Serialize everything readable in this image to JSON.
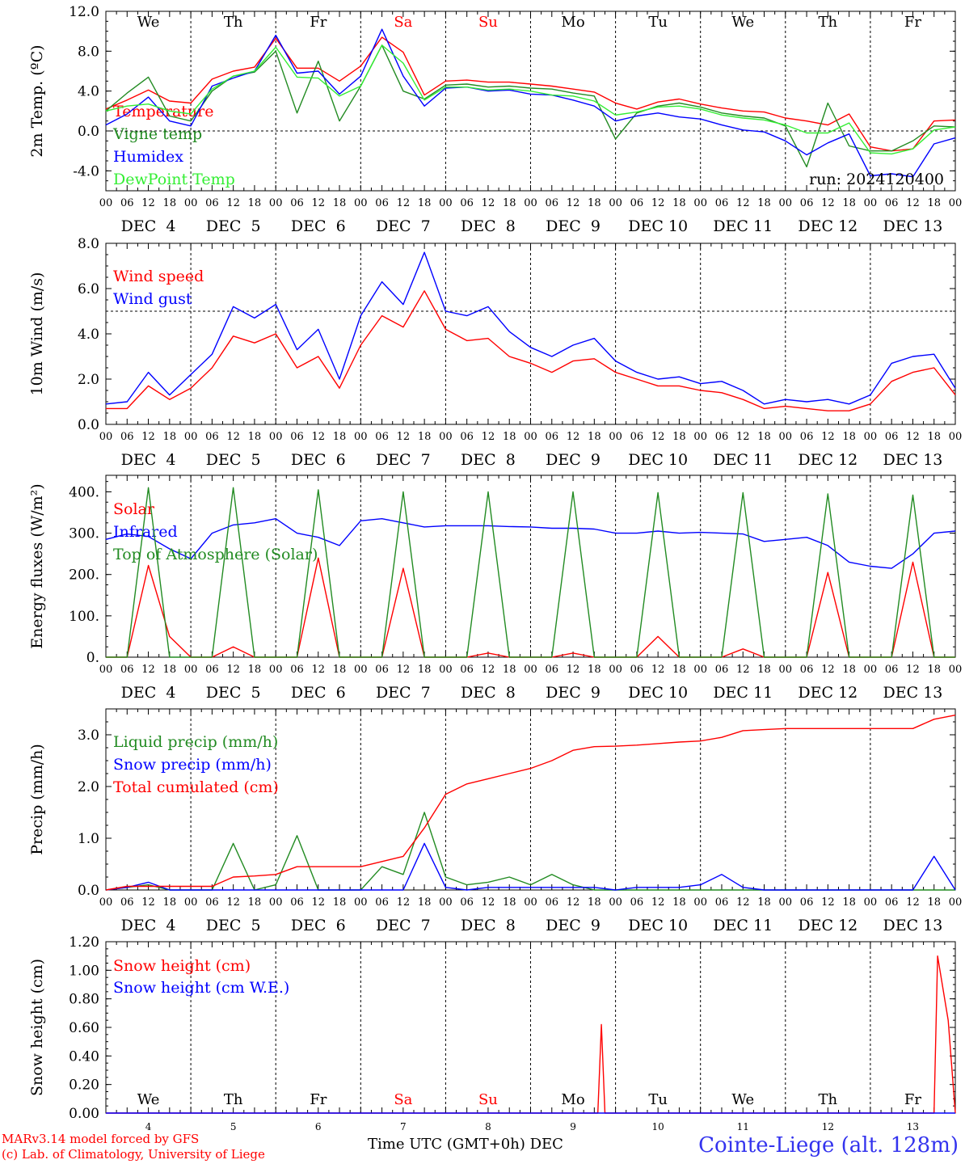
{
  "run_label": "run: 2024120400",
  "days": [
    {
      "dow": "We",
      "dow_color": "#000000",
      "date": "DEC  4",
      "short": "4"
    },
    {
      "dow": "Th",
      "dow_color": "#000000",
      "date": "DEC  5",
      "short": "5"
    },
    {
      "dow": "Fr",
      "dow_color": "#000000",
      "date": "DEC  6",
      "short": "6"
    },
    {
      "dow": "Sa",
      "dow_color": "#ff0000",
      "date": "DEC  7",
      "short": "7"
    },
    {
      "dow": "Su",
      "dow_color": "#ff0000",
      "date": "DEC  8",
      "short": "8"
    },
    {
      "dow": "Mo",
      "dow_color": "#000000",
      "date": "DEC  9",
      "short": "9"
    },
    {
      "dow": "Tu",
      "dow_color": "#000000",
      "date": "DEC 10",
      "short": "10"
    },
    {
      "dow": "We",
      "dow_color": "#000000",
      "date": "DEC 11",
      "short": "11"
    },
    {
      "dow": "Th",
      "dow_color": "#000000",
      "date": "DEC 12",
      "short": "12"
    },
    {
      "dow": "Fr",
      "dow_color": "#000000",
      "date": "DEC 13",
      "short": "13"
    }
  ],
  "hour_labels": [
    "00",
    "06",
    "12",
    "18"
  ],
  "footer": {
    "line1": "MARv3.14 model forced by GFS",
    "line2": "(c) Lab. of Climatology, University of Liege",
    "axis_title": "Time UTC (GMT+0h) DEC",
    "station": "Cointe-Liege (alt. 128m)"
  },
  "chart_data": [
    {
      "type": "line",
      "ylabel": "2m Temp. (ºC)",
      "ylim": [
        -6,
        12
      ],
      "yticks": [
        -4,
        0,
        4,
        8,
        12
      ],
      "ytick_labels": [
        "-4.0",
        "0.0",
        "4.0",
        "8.0",
        "12.0"
      ],
      "ref_line": 0,
      "x_hours": [
        0,
        6,
        12,
        18,
        24,
        30,
        36,
        42,
        48,
        54,
        60,
        66,
        72,
        78,
        84,
        90,
        96,
        102,
        108,
        114,
        120,
        126,
        132,
        138,
        144,
        150,
        156,
        162,
        168,
        174,
        180,
        186,
        192,
        198,
        204,
        210,
        216,
        222,
        228,
        234,
        240
      ],
      "series": [
        {
          "name": "Temperature",
          "color": "#ff0000",
          "values": [
            2.2,
            3.1,
            4.1,
            3.0,
            2.8,
            5.2,
            6.0,
            6.4,
            9.3,
            6.3,
            6.3,
            5.0,
            6.5,
            9.4,
            7.9,
            3.6,
            5.0,
            5.1,
            4.9,
            4.9,
            4.7,
            4.5,
            4.2,
            3.9,
            2.8,
            2.2,
            2.9,
            3.2,
            2.7,
            2.3,
            2.0,
            1.9,
            1.3,
            1.0,
            0.6,
            1.7,
            -1.6,
            -2.0,
            -1.8,
            1.0,
            1.1
          ]
        },
        {
          "name": "Vigne temp",
          "color": "#228b22",
          "values": [
            2.0,
            3.8,
            5.4,
            1.5,
            1.0,
            4.0,
            5.5,
            5.9,
            8.0,
            1.8,
            7.0,
            1.0,
            4.5,
            8.6,
            4.0,
            3.2,
            4.6,
            4.7,
            4.4,
            4.5,
            4.3,
            4.2,
            3.8,
            3.5,
            -0.8,
            1.8,
            2.5,
            2.8,
            2.4,
            1.8,
            1.5,
            1.3,
            0.5,
            -3.6,
            2.8,
            -1.5,
            -2.0,
            -2.0,
            -1.0,
            0.5,
            0.4
          ]
        },
        {
          "name": "Humidex",
          "color": "#0000ff",
          "values": [
            0.6,
            1.7,
            3.4,
            1.0,
            0.5,
            4.5,
            5.3,
            6.0,
            9.6,
            5.8,
            6.0,
            3.7,
            5.5,
            10.2,
            5.5,
            2.5,
            4.3,
            4.4,
            4.0,
            4.1,
            3.7,
            3.6,
            3.1,
            2.5,
            1.0,
            1.5,
            1.8,
            1.4,
            1.2,
            0.6,
            0.1,
            -0.1,
            -1.0,
            -2.4,
            -1.2,
            -0.3,
            -4.5,
            -4.3,
            -4.6,
            -1.3,
            -0.7
          ]
        },
        {
          "name": "DewPoint Temp",
          "color": "#33ee33",
          "values": [
            2.0,
            2.5,
            2.7,
            2.0,
            1.7,
            4.2,
            5.5,
            6.0,
            8.4,
            5.4,
            5.3,
            3.5,
            4.5,
            8.6,
            6.8,
            3.1,
            4.4,
            4.4,
            4.1,
            4.2,
            4.0,
            3.6,
            3.5,
            3.0,
            1.6,
            1.9,
            2.4,
            2.5,
            2.2,
            1.6,
            1.3,
            1.1,
            0.6,
            -0.2,
            -0.2,
            0.8,
            -2.2,
            -2.3,
            -1.8,
            0.1,
            0.4
          ]
        }
      ]
    },
    {
      "type": "line",
      "ylabel": "10m Wind (m/s)",
      "ylim": [
        0,
        8
      ],
      "yticks": [
        0,
        2,
        4,
        6,
        8
      ],
      "ytick_labels": [
        "0.0",
        "2.0",
        "4.0",
        "6.0",
        "8.0"
      ],
      "ref_line": 5,
      "x_hours": [
        0,
        6,
        12,
        18,
        24,
        30,
        36,
        42,
        48,
        54,
        60,
        66,
        72,
        78,
        84,
        90,
        96,
        102,
        108,
        114,
        120,
        126,
        132,
        138,
        144,
        150,
        156,
        162,
        168,
        174,
        180,
        186,
        192,
        198,
        204,
        210,
        216,
        222,
        228,
        234,
        240
      ],
      "series": [
        {
          "name": "Wind speed",
          "color": "#ff0000",
          "values": [
            0.7,
            0.7,
            1.7,
            1.1,
            1.6,
            2.5,
            3.9,
            3.6,
            4.0,
            2.5,
            3.0,
            1.6,
            3.5,
            4.8,
            4.3,
            5.9,
            4.2,
            3.7,
            3.8,
            3.0,
            2.7,
            2.3,
            2.8,
            2.9,
            2.3,
            2.0,
            1.7,
            1.7,
            1.5,
            1.4,
            1.1,
            0.7,
            0.8,
            0.7,
            0.6,
            0.6,
            0.9,
            1.9,
            2.3,
            2.5,
            1.3
          ]
        },
        {
          "name": "Wind gust",
          "color": "#0000ff",
          "values": [
            0.9,
            1.0,
            2.3,
            1.3,
            2.2,
            3.1,
            5.2,
            4.7,
            5.3,
            3.3,
            4.2,
            2.0,
            4.8,
            6.3,
            5.3,
            7.6,
            5.0,
            4.8,
            5.2,
            4.1,
            3.4,
            3.0,
            3.5,
            3.8,
            2.8,
            2.3,
            2.0,
            2.1,
            1.8,
            1.9,
            1.5,
            0.9,
            1.1,
            1.0,
            1.1,
            0.9,
            1.3,
            2.7,
            3.0,
            3.1,
            1.6
          ]
        }
      ]
    },
    {
      "type": "line",
      "ylabel": "Energy fluxes (W/m²)",
      "ylim": [
        0,
        440
      ],
      "yticks": [
        0,
        100,
        200,
        300,
        400
      ],
      "ytick_labels": [
        "0.",
        "100.",
        "200.",
        "300.",
        "400."
      ],
      "x_hours": [
        0,
        6,
        12,
        18,
        24,
        30,
        36,
        42,
        48,
        54,
        60,
        66,
        72,
        78,
        84,
        90,
        96,
        102,
        108,
        114,
        120,
        126,
        132,
        138,
        144,
        150,
        156,
        162,
        168,
        174,
        180,
        186,
        192,
        198,
        204,
        210,
        216,
        222,
        228,
        234,
        240
      ],
      "series": [
        {
          "name": "Solar",
          "color": "#ff0000",
          "values": [
            0,
            0,
            222,
            50,
            0,
            0,
            25,
            0,
            0,
            0,
            240,
            0,
            0,
            0,
            215,
            0,
            0,
            0,
            10,
            0,
            0,
            0,
            10,
            0,
            0,
            0,
            50,
            0,
            0,
            0,
            20,
            0,
            0,
            0,
            205,
            0,
            0,
            0,
            230,
            0,
            0
          ]
        },
        {
          "name": "Infrared",
          "color": "#0000ff",
          "values": [
            285,
            298,
            292,
            262,
            238,
            300,
            320,
            325,
            335,
            300,
            290,
            270,
            330,
            335,
            325,
            315,
            318,
            318,
            318,
            316,
            315,
            312,
            312,
            310,
            300,
            300,
            305,
            300,
            302,
            300,
            298,
            280,
            285,
            290,
            270,
            230,
            220,
            215,
            250,
            300,
            305
          ]
        },
        {
          "name": "Top of Atmosphere (Solar)",
          "color": "#228b22",
          "values": [
            0,
            0,
            410,
            0,
            0,
            0,
            410,
            0,
            0,
            0,
            405,
            0,
            0,
            0,
            400,
            0,
            0,
            0,
            400,
            0,
            0,
            0,
            400,
            0,
            0,
            0,
            398,
            0,
            0,
            0,
            398,
            0,
            0,
            0,
            395,
            0,
            0,
            0,
            392,
            0,
            0
          ]
        }
      ]
    },
    {
      "type": "line",
      "ylabel": "Precip (mm/h)",
      "ylim": [
        0,
        3.5
      ],
      "yticks": [
        0,
        1,
        2,
        3
      ],
      "ytick_labels": [
        "0.0",
        "1.0",
        "2.0",
        "3.0"
      ],
      "x_hours": [
        0,
        6,
        12,
        18,
        24,
        30,
        36,
        42,
        48,
        54,
        60,
        66,
        72,
        78,
        84,
        90,
        96,
        102,
        108,
        114,
        120,
        126,
        132,
        138,
        144,
        150,
        156,
        162,
        168,
        174,
        180,
        186,
        192,
        198,
        204,
        210,
        216,
        222,
        228,
        234,
        240
      ],
      "series": [
        {
          "name": "Liquid precip (mm/h)",
          "color": "#228b22",
          "values": [
            0,
            0.05,
            0.1,
            0,
            0,
            0,
            0.9,
            0,
            0.1,
            1.05,
            0,
            0,
            0,
            0.45,
            0.3,
            1.5,
            0.25,
            0.1,
            0.15,
            0.25,
            0.1,
            0.3,
            0.1,
            0,
            0,
            0,
            0,
            0,
            0,
            0,
            0,
            0,
            0,
            0,
            0,
            0,
            0,
            0,
            0,
            0,
            0
          ]
        },
        {
          "name": "Snow precip (mm/h)",
          "color": "#0000ff",
          "values": [
            0,
            0.05,
            0.15,
            0,
            0,
            0,
            0,
            0,
            0,
            0,
            0,
            0,
            0,
            0,
            0,
            0.9,
            0.05,
            0,
            0.05,
            0.05,
            0.05,
            0.05,
            0.05,
            0.05,
            0,
            0.05,
            0.05,
            0.05,
            0.1,
            0.3,
            0.05,
            0,
            0,
            0,
            0,
            0,
            0,
            0,
            0,
            0.65,
            0
          ]
        },
        {
          "name": "Total cumulated (cm)",
          "color": "#ff0000",
          "values": [
            0,
            0.07,
            0.07,
            0.07,
            0.07,
            0.07,
            0.25,
            0.27,
            0.3,
            0.45,
            0.45,
            0.45,
            0.45,
            0.55,
            0.65,
            1.2,
            1.85,
            2.05,
            2.15,
            2.25,
            2.35,
            2.5,
            2.7,
            2.77,
            2.78,
            2.8,
            2.83,
            2.86,
            2.88,
            2.95,
            3.08,
            3.1,
            3.12,
            3.12,
            3.12,
            3.12,
            3.12,
            3.12,
            3.12,
            3.3,
            3.38
          ]
        }
      ]
    },
    {
      "type": "line",
      "ylabel": "Snow height (cm)",
      "ylim": [
        0,
        1.2
      ],
      "yticks": [
        0,
        0.2,
        0.4,
        0.6,
        0.8,
        1.0,
        1.2
      ],
      "ytick_labels": [
        "0.00",
        "0.20",
        "0.40",
        "0.60",
        "0.80",
        "1.00",
        "1.20"
      ],
      "series": [
        {
          "name": "Snow height (cm)",
          "color": "#ff0000",
          "x_hours": [
            0,
            139,
            140,
            141,
            234,
            235,
            238,
            240
          ],
          "values": [
            0,
            0,
            0.62,
            0,
            0,
            1.1,
            0.65,
            0
          ]
        },
        {
          "name": "Snow height (cm W.E.)",
          "color": "#0000ff",
          "x_hours": [
            0,
            240
          ],
          "values": [
            0,
            0
          ]
        }
      ]
    }
  ]
}
